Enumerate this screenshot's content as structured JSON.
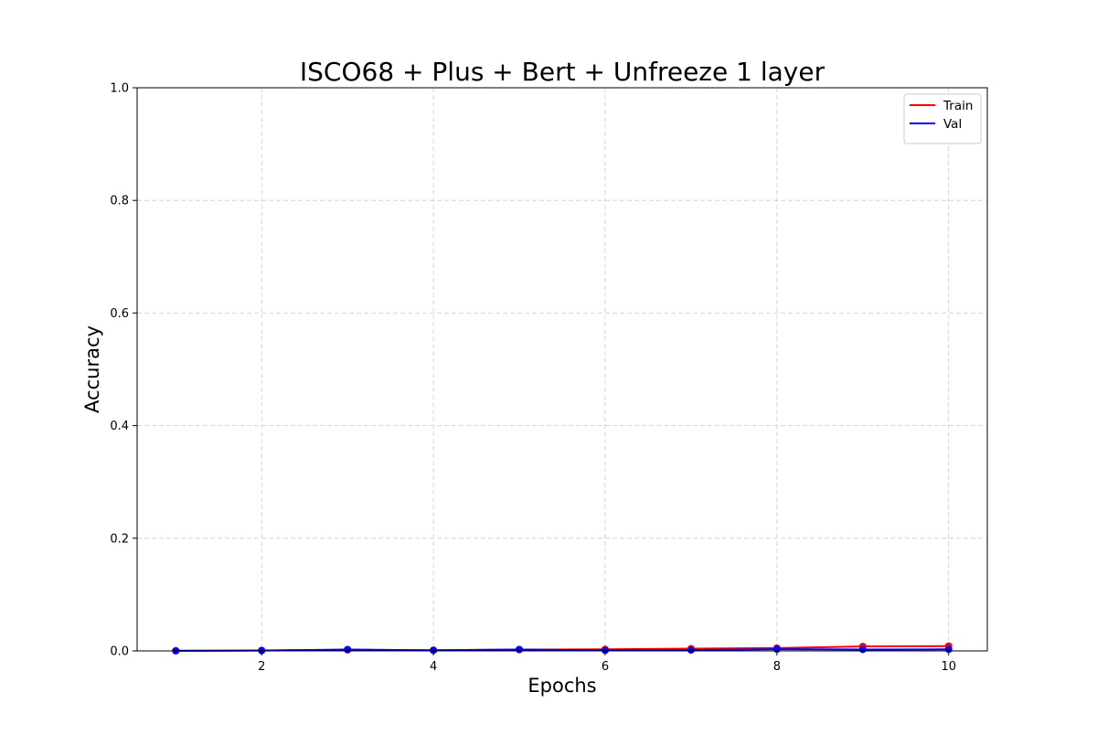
{
  "chart_data": {
    "type": "line",
    "title": "ISCO68 + Plus + Bert + Unfreeze 1 layer",
    "xlabel": "Epochs",
    "ylabel": "Accuracy",
    "x": [
      1,
      2,
      3,
      4,
      5,
      6,
      7,
      8,
      9,
      10
    ],
    "xlim": [
      0.55,
      10.45
    ],
    "ylim": [
      0.0,
      1.0
    ],
    "xticks": [
      2,
      4,
      6,
      8,
      10
    ],
    "yticks": [
      0.0,
      0.2,
      0.4,
      0.6,
      0.8,
      1.0
    ],
    "xtick_labels": [
      "2",
      "4",
      "6",
      "8",
      "10"
    ],
    "ytick_labels": [
      "0.0",
      "0.2",
      "0.4",
      "0.6",
      "0.8",
      "1.0"
    ],
    "grid": true,
    "legend_position": "top-right",
    "series": [
      {
        "name": "Train",
        "color": "#ff0000",
        "values": [
          0.0002,
          0.0008,
          0.0018,
          0.0012,
          0.0022,
          0.0028,
          0.004,
          0.005,
          0.008,
          0.0085
        ]
      },
      {
        "name": "Val",
        "color": "#0000ff",
        "values": [
          0.0002,
          0.0006,
          0.0025,
          0.001,
          0.0025,
          0.001,
          0.0015,
          0.003,
          0.0025,
          0.0028
        ]
      }
    ]
  }
}
